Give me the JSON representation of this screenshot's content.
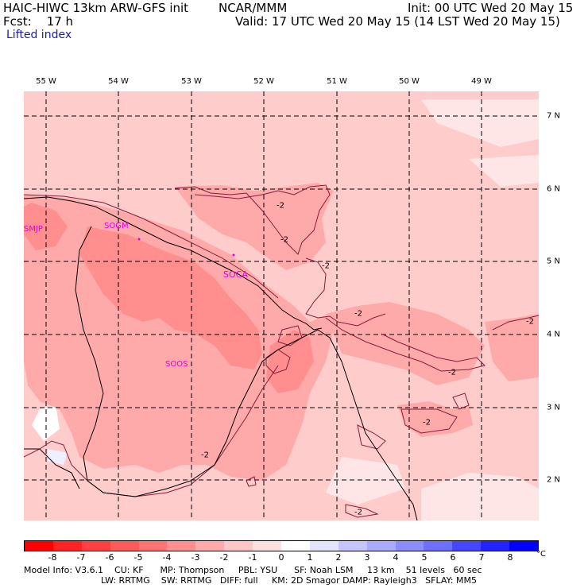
{
  "header": {
    "model": "HAIC-HIWC 13km ARW-GFS init",
    "org": "NCAR/MMM",
    "init": "Init: 00 UTC Wed 20 May 15",
    "fcst": "Fcst:    17 h",
    "valid": "Valid: 17 UTC Wed 20 May 15 (14 LST Wed 20 May 15)",
    "field": "Lifted index"
  },
  "lon_labels": [
    "55 W",
    "54 W",
    "53 W",
    "52 W",
    "51 W",
    "50 W",
    "49 W"
  ],
  "lat_labels": [
    "7 N",
    "6 N",
    "5 N",
    "4 N",
    "3 N",
    "2 N"
  ],
  "stations": [
    "SMJP",
    "SOGM",
    "SOCA",
    "SOOS"
  ],
  "contour_labels": [
    "-2",
    "-2",
    "-2",
    "-2",
    "-2",
    "-2",
    "-2",
    "-2",
    "-2"
  ],
  "colorbar": {
    "ticks": [
      "-8",
      "-7",
      "-6",
      "-5",
      "-4",
      "-3",
      "-2",
      "-1",
      "0",
      "1",
      "2",
      "3",
      "4",
      "5",
      "6",
      "7",
      "8"
    ],
    "unit": "°C",
    "colors": [
      "#ff0000",
      "#ff2323",
      "#ff4040",
      "#ff5a5a",
      "#ff7373",
      "#ff8f8f",
      "#ffaaaa",
      "#ffc6c6",
      "#ffe0e0",
      "#ffffff",
      "#e4e4ff",
      "#c6c6ff",
      "#aaaaff",
      "#8c8cff",
      "#6e6eff",
      "#4646ff",
      "#2323ff",
      "#0000ff"
    ]
  },
  "footer": {
    "line1": "Model Info: V3.6.1    CU: KF      MP: Thompson     PBL: YSU      SF: Noah LSM     13 km    51 levels   60 sec",
    "line2": "LW: RRTMG    SW: RRTMG   DIFF: full     KM: 2D Smagor DAMP: Rayleigh3   SFLAY: MM5"
  },
  "colors": {
    "light": "#ffcccc",
    "medium": "#ffaaaa",
    "dark": "#ff8f8f",
    "faint": "#ffe6e6",
    "station": "#e000e0"
  }
}
